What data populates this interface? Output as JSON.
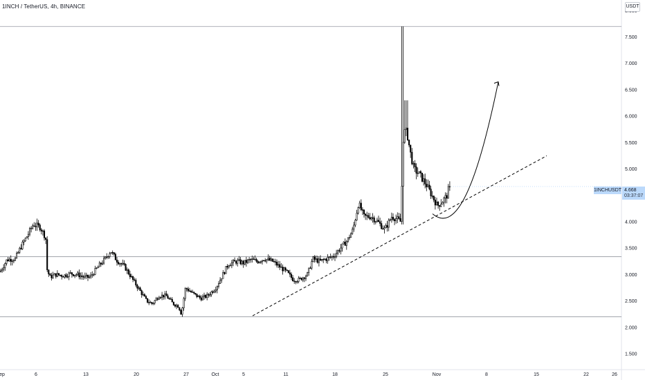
{
  "header": {
    "title": "1INCH / TetherUS, 4h, BINANCE",
    "currency_button": "USDT"
  },
  "price_label": {
    "symbol": "1INCHUSDT",
    "price": "4.668",
    "countdown": "03:37:07"
  },
  "colors": {
    "up_candle": "#ffffff",
    "down_candle": "#000000",
    "candle_outline": "#000000",
    "hline": "#9598a1",
    "label_bg": "#bbd9fb"
  },
  "chart_data": {
    "type": "candlestick",
    "symbol": "1INCH / TetherUS",
    "interval": "4h",
    "exchange": "BINANCE",
    "y_ticks": [
      "8.000",
      "7.500",
      "7.000",
      "6.500",
      "6.000",
      "5.500",
      "5.000",
      "4.500",
      "4.000",
      "3.500",
      "3.000",
      "2.500",
      "2.000",
      "1.500"
    ],
    "ylim": [
      1.2,
      8.2
    ],
    "x_ticks": [
      "ep",
      "6",
      "13",
      "20",
      "27",
      "Oct",
      "5",
      "11",
      "18",
      "25",
      "Nov",
      "8",
      "15",
      "22",
      "26"
    ],
    "price_path": [
      [
        0,
        3.05
      ],
      [
        10,
        3.28
      ],
      [
        22,
        3.3
      ],
      [
        30,
        3.52
      ],
      [
        40,
        3.75
      ],
      [
        48,
        3.95
      ],
      [
        58,
        3.9
      ],
      [
        66,
        3.7
      ],
      [
        68,
        3.1
      ],
      [
        72,
        2.95
      ],
      [
        80,
        3.0
      ],
      [
        92,
        2.98
      ],
      [
        102,
        3.02
      ],
      [
        112,
        3.0
      ],
      [
        122,
        2.95
      ],
      [
        130,
        2.95
      ],
      [
        142,
        3.15
      ],
      [
        152,
        3.3
      ],
      [
        160,
        3.45
      ],
      [
        168,
        3.28
      ],
      [
        180,
        3.15
      ],
      [
        192,
        2.9
      ],
      [
        202,
        2.7
      ],
      [
        212,
        2.5
      ],
      [
        220,
        2.45
      ],
      [
        230,
        2.6
      ],
      [
        240,
        2.6
      ],
      [
        250,
        2.45
      ],
      [
        258,
        2.4
      ],
      [
        262,
        2.25
      ],
      [
        268,
        2.75
      ],
      [
        278,
        2.65
      ],
      [
        290,
        2.55
      ],
      [
        300,
        2.6
      ],
      [
        312,
        2.75
      ],
      [
        320,
        2.95
      ],
      [
        330,
        3.2
      ],
      [
        342,
        3.25
      ],
      [
        352,
        3.22
      ],
      [
        362,
        3.28
      ],
      [
        372,
        3.25
      ],
      [
        382,
        3.3
      ],
      [
        394,
        3.25
      ],
      [
        404,
        3.15
      ],
      [
        414,
        3.05
      ],
      [
        424,
        2.9
      ],
      [
        432,
        2.9
      ],
      [
        444,
        3.0
      ],
      [
        452,
        3.3
      ],
      [
        462,
        3.25
      ],
      [
        472,
        3.3
      ],
      [
        482,
        3.35
      ],
      [
        492,
        3.5
      ],
      [
        502,
        3.65
      ],
      [
        510,
        3.85
      ],
      [
        518,
        4.35
      ],
      [
        526,
        4.1
      ],
      [
        536,
        4.1
      ],
      [
        546,
        4.0
      ],
      [
        556,
        3.85
      ],
      [
        566,
        4.1
      ],
      [
        574,
        4.05
      ],
      [
        579,
        4.0
      ],
      [
        583,
        5.7
      ],
      [
        588,
        5.7
      ],
      [
        593,
        5.3
      ],
      [
        598,
        5.0
      ],
      [
        606,
        4.9
      ],
      [
        616,
        4.7
      ],
      [
        624,
        4.5
      ],
      [
        632,
        4.3
      ],
      [
        640,
        4.4
      ],
      [
        646,
        4.5
      ],
      [
        650,
        4.668
      ]
    ],
    "annotations": [
      {
        "type": "horizontal_line",
        "price": 7.7
      },
      {
        "type": "horizontal_line",
        "price": 3.34
      },
      {
        "type": "horizontal_line",
        "price": 2.2
      },
      {
        "type": "trendline_dashed",
        "from": [
          365,
          2.22
        ],
        "to": [
          790,
          5.25
        ]
      },
      {
        "type": "curved_arrow",
        "from": [
          625,
          4.15
        ],
        "to": [
          720,
          6.65
        ]
      }
    ],
    "last_price": 4.668
  }
}
